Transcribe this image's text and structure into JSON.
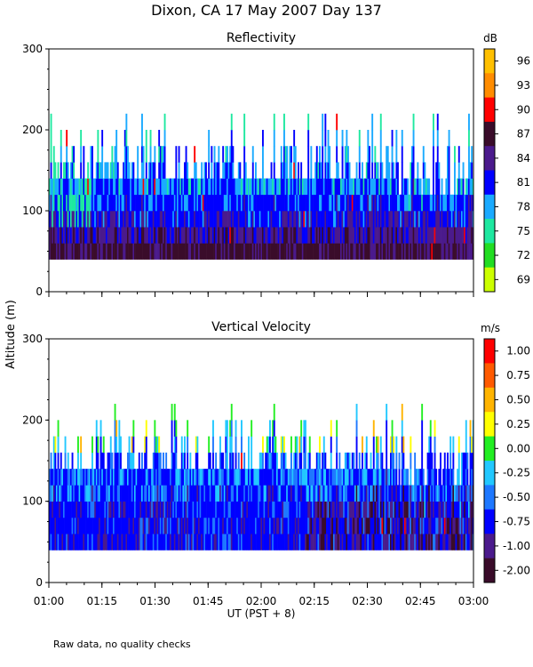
{
  "figure": {
    "title": "Dixon, CA 17 May 2007  Day 137",
    "y_axis_label": "Altitude (m)",
    "x_axis_label": "UT  (PST + 8)",
    "footnote": "Raw data, no quality checks"
  },
  "chart_data": [
    {
      "type": "heatmap",
      "title": "Reflectivity",
      "xlabel": "UT  (PST + 8)",
      "ylabel": "Altitude (m)",
      "x_ticks": [
        "01:00",
        "01:15",
        "01:30",
        "01:45",
        "02:00",
        "02:15",
        "02:30",
        "02:45",
        "03:00"
      ],
      "x_range": [
        "01:00",
        "03:00"
      ],
      "y_ticks": [
        0,
        100,
        200,
        300
      ],
      "ylim": [
        0,
        300
      ],
      "colorbar": {
        "unit": "dB",
        "labels": [
          "96",
          "93",
          "90",
          "87",
          "84",
          "81",
          "78",
          "75",
          "72",
          "69"
        ],
        "colors": [
          "#ffc000",
          "#ff8c00",
          "#ff0000",
          "#3a0c2a",
          "#4b1a8c",
          "#0000ff",
          "#1aaaff",
          "#1ee8a0",
          "#22dd22",
          "#ccff00"
        ]
      },
      "data_summary": {
        "lowest_echo_altitude_m": 40,
        "typical_echo_top_m": [
          140,
          180
        ],
        "max_echo_top_m": 220,
        "dominant_dB": [
          78,
          87
        ]
      }
    },
    {
      "type": "heatmap",
      "title": "Vertical Velocity",
      "xlabel": "UT  (PST + 8)",
      "ylabel": "Altitude (m)",
      "x_ticks": [
        "01:00",
        "01:15",
        "01:30",
        "01:45",
        "02:00",
        "02:15",
        "02:30",
        "02:45",
        "03:00"
      ],
      "x_range": [
        "01:00",
        "03:00"
      ],
      "y_ticks": [
        0,
        100,
        200,
        300
      ],
      "ylim": [
        0,
        300
      ],
      "colorbar": {
        "unit": "m/s",
        "labels": [
          "1.00",
          "0.75",
          "0.50",
          "0.25",
          "0.00",
          "-0.25",
          "-0.50",
          "-0.75",
          "-1.00",
          "-2.00"
        ],
        "colors": [
          "#ff0000",
          "#ff5a00",
          "#ffb400",
          "#ffff00",
          "#22ee22",
          "#22c8ff",
          "#1e78ff",
          "#0000ff",
          "#4b1a8c",
          "#3a0c2a"
        ]
      },
      "data_summary": {
        "lowest_echo_altitude_m": 40,
        "typical_echo_top_m": [
          140,
          180
        ],
        "max_echo_top_m": 220,
        "dominant_velocity_m_s": [
          -0.75,
          -0.25
        ]
      }
    }
  ]
}
